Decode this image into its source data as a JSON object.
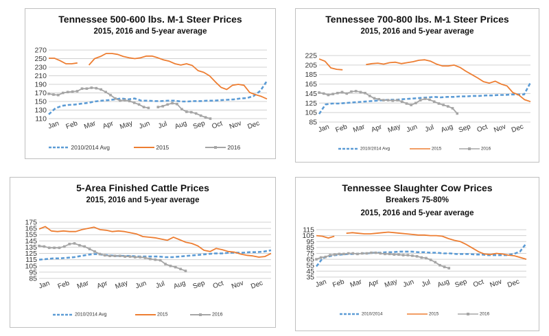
{
  "months": [
    "Jan",
    "Feb",
    "Mar",
    "Apr",
    "May",
    "Jun",
    "Jul",
    "Aug",
    "Sep",
    "Oct",
    "Nov",
    "Dec"
  ],
  "colors": {
    "avg": "#5b9bd5",
    "y2015": "#ed7d31",
    "y2016": "#a5a5a5",
    "grid": "#d0d0d0"
  },
  "chart_data": [
    {
      "type": "line",
      "title": "Tennessee 500-600 lbs. M-1 Steer Prices",
      "subtitle": "2015, 2016 and 5-year average",
      "yticks": [
        110,
        130,
        150,
        170,
        190,
        210,
        230,
        250,
        270
      ],
      "ylim": [
        110,
        270
      ],
      "legend": [
        "2010/2014 Avg",
        "2015",
        "2016"
      ],
      "series": [
        {
          "name": "2010/2014 Avg",
          "style": "dash",
          "values": [
            120,
            134,
            140,
            142,
            143,
            145,
            147,
            150,
            152,
            153,
            155,
            157,
            155,
            157,
            152,
            152,
            151,
            151,
            152,
            152,
            150,
            150,
            151,
            151,
            152,
            152,
            153,
            154,
            155,
            157,
            158,
            163,
            175,
            198
          ]
        },
        {
          "name": "2015",
          "style": "solid",
          "values": [
            251,
            251,
            245,
            238,
            238,
            240,
            null,
            235,
            250,
            255,
            262,
            262,
            260,
            255,
            252,
            250,
            252,
            256,
            256,
            252,
            247,
            244,
            238,
            235,
            238,
            234,
            222,
            218,
            210,
            196,
            183,
            178,
            188,
            190,
            188,
            171,
            166,
            162,
            156
          ]
        },
        {
          "name": "2016",
          "style": "marker",
          "values": [
            168,
            166,
            165,
            170,
            172,
            173,
            174,
            180,
            180,
            182,
            181,
            178,
            172,
            165,
            157,
            152,
            153,
            151,
            147,
            143,
            137,
            135,
            null,
            137,
            139,
            143,
            146,
            144,
            132,
            126,
            125,
            122,
            117,
            113,
            110
          ]
        }
      ]
    },
    {
      "type": "line",
      "title": "Tennessee 700-800 lbs. M-1 Steer Prices",
      "subtitle": "2015, 2016 and 5-year average",
      "yticks": [
        85,
        105,
        125,
        145,
        165,
        185,
        205,
        225
      ],
      "ylim": [
        85,
        225
      ],
      "legend": [
        "2010/2014 Avg",
        "2015",
        "2016"
      ],
      "series": [
        {
          "name": "2010/2014 Avg",
          "style": "dash",
          "values": [
            102,
            122,
            124,
            124,
            125,
            126,
            127,
            128,
            129,
            130,
            131,
            132,
            132,
            133,
            134,
            135,
            136,
            137,
            138,
            137,
            138,
            138,
            139,
            139,
            140,
            140,
            141,
            141,
            142,
            142,
            143,
            143,
            143,
            168
          ]
        },
        {
          "name": "2015",
          "style": "solid",
          "values": [
            218,
            213,
            199,
            196,
            195,
            null,
            null,
            null,
            206,
            208,
            209,
            207,
            210,
            211,
            208,
            210,
            212,
            215,
            216,
            213,
            207,
            203,
            203,
            205,
            200,
            192,
            185,
            178,
            170,
            167,
            171,
            165,
            161,
            147,
            142,
            132,
            128
          ]
        },
        {
          "name": "2016",
          "style": "marker",
          "values": [
            147,
            145,
            142,
            144,
            146,
            148,
            145,
            149,
            150,
            148,
            146,
            140,
            135,
            133,
            131,
            131,
            130,
            131,
            128,
            124,
            121,
            125,
            131,
            134,
            132,
            128,
            124,
            121,
            118,
            114,
            103
          ]
        }
      ]
    },
    {
      "type": "line",
      "title": "5-Area Finished Cattle Prices",
      "subtitle": "2015, 2016 and 5-year average",
      "yticks": [
        85,
        95,
        105,
        115,
        125,
        135,
        145,
        155,
        165,
        175
      ],
      "ylim": [
        85,
        175
      ],
      "legend": [
        "2010/2014 Avg",
        "2015",
        "2016"
      ],
      "series": [
        {
          "name": "2010/2014 Avg",
          "style": "dash",
          "values": [
            115,
            116,
            117,
            117,
            118,
            119,
            121,
            123,
            124,
            123,
            122,
            121,
            121,
            121,
            120,
            120,
            120,
            120,
            119,
            119,
            120,
            121,
            122,
            123,
            124,
            125,
            125,
            126,
            126,
            126,
            127,
            127,
            128,
            130
          ]
        },
        {
          "name": "2015",
          "style": "solid",
          "values": [
            164,
            168,
            161,
            160,
            161,
            160,
            160,
            163,
            165,
            167,
            163,
            162,
            160,
            161,
            160,
            158,
            156,
            152,
            151,
            150,
            148,
            146,
            151,
            147,
            143,
            141,
            137,
            130,
            128,
            133,
            131,
            128,
            127,
            124,
            122,
            121,
            119,
            120,
            125
          ]
        },
        {
          "name": "2016",
          "style": "marker",
          "values": [
            137,
            136,
            134,
            134,
            134,
            136,
            140,
            141,
            138,
            136,
            132,
            128,
            124,
            122,
            121,
            121,
            121,
            120,
            120,
            119,
            119,
            118,
            116,
            115,
            114,
            108,
            105,
            103,
            100,
            97
          ]
        }
      ]
    },
    {
      "type": "line",
      "title": "Tennessee Slaughter Cow Prices",
      "subtitle": "Breakers 75-80%",
      "subtitle2": "2015, 2016 and 5-year average",
      "yticks": [
        35,
        45,
        55,
        65,
        75,
        85,
        95,
        105,
        115
      ],
      "ylim": [
        35,
        115
      ],
      "legend": [
        "2010/2014",
        "2015",
        "2016"
      ],
      "series": [
        {
          "name": "2010/2014",
          "style": "dash",
          "values": [
            53,
            67,
            70,
            72,
            73,
            74,
            74,
            75,
            75,
            76,
            76,
            77,
            77,
            78,
            78,
            78,
            77,
            77,
            76,
            76,
            75,
            75,
            74,
            74,
            74,
            73,
            73,
            72,
            72,
            72,
            72,
            74,
            78,
            92
          ]
        },
        {
          "name": "2015",
          "style": "solid",
          "values": [
            105,
            104,
            101,
            104,
            null,
            109,
            110,
            109,
            108,
            108,
            109,
            110,
            111,
            110,
            109,
            108,
            107,
            106,
            106,
            105,
            105,
            104,
            100,
            97,
            95,
            90,
            84,
            78,
            74,
            73,
            75,
            74,
            72,
            71,
            68,
            65
          ]
        },
        {
          "name": "2016",
          "style": "marker",
          "values": [
            65,
            68,
            69,
            72,
            73,
            74,
            74,
            75,
            75,
            74,
            75,
            75,
            76,
            76,
            75,
            74,
            74,
            73,
            73,
            72,
            72,
            71,
            70,
            68,
            67,
            64,
            60,
            55,
            52,
            50
          ]
        }
      ]
    }
  ]
}
